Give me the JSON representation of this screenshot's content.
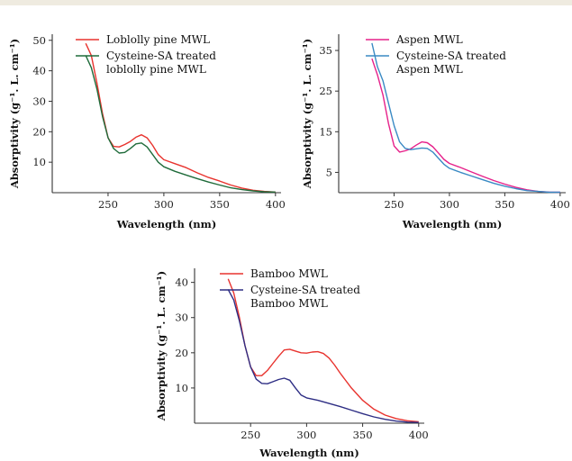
{
  "chart_data": [
    {
      "type": "line",
      "xlabel": "Wavelength (nm)",
      "ylabel": "Absorptivity (g⁻¹. L. cm⁻¹)",
      "xlim": [
        200,
        405
      ],
      "ylim": [
        0,
        52
      ],
      "xticks": [
        250,
        300,
        350,
        400
      ],
      "yticks": [
        10,
        20,
        30,
        40,
        50
      ],
      "legend": "top-right",
      "series": [
        {
          "name": "Loblolly pine MWL",
          "color": "#e8332e",
          "x": [
            230,
            235,
            240,
            245,
            250,
            255,
            260,
            265,
            270,
            275,
            280,
            285,
            290,
            295,
            300,
            310,
            320,
            330,
            340,
            350,
            360,
            370,
            380,
            390,
            400
          ],
          "y": [
            49,
            45,
            36,
            26,
            18,
            15.2,
            15,
            15.8,
            16.8,
            18.2,
            19,
            18,
            15.5,
            12.5,
            10.8,
            9.5,
            8.2,
            6.5,
            5,
            3.8,
            2.5,
            1.5,
            0.8,
            0.4,
            0.2
          ]
        },
        {
          "name": "Cysteine-SA treated",
          "name2": "loblolly pine MWL",
          "color": "#1f6b3a",
          "x": [
            230,
            235,
            240,
            245,
            250,
            255,
            260,
            265,
            270,
            275,
            280,
            285,
            290,
            295,
            300,
            310,
            320,
            330,
            340,
            350,
            360,
            370,
            380,
            390,
            400
          ],
          "y": [
            45,
            41,
            34,
            25,
            18,
            14.5,
            13,
            13.2,
            14.5,
            16,
            16.3,
            15,
            12.5,
            10,
            8.5,
            7,
            5.8,
            4.6,
            3.5,
            2.5,
            1.6,
            1,
            0.6,
            0.3,
            0.2
          ]
        }
      ]
    },
    {
      "type": "line",
      "xlabel": "Wavelength (nm)",
      "ylabel": "Absorptivity (g⁻¹. L. cm⁻¹)",
      "xlim": [
        200,
        405
      ],
      "ylim": [
        0,
        39
      ],
      "xticks": [
        250,
        300,
        350,
        400
      ],
      "yticks": [
        5,
        15,
        25,
        35
      ],
      "legend": "top-right",
      "series": [
        {
          "name": "Aspen MWL",
          "color": "#e6218a",
          "x": [
            230,
            235,
            240,
            245,
            250,
            255,
            260,
            265,
            270,
            275,
            280,
            285,
            290,
            295,
            300,
            310,
            320,
            330,
            340,
            350,
            360,
            370,
            380,
            390,
            400
          ],
          "y": [
            33,
            29,
            24,
            17,
            11.5,
            10,
            10.3,
            10.8,
            11.7,
            12.5,
            12.3,
            11.3,
            9.8,
            8.2,
            7.2,
            6.2,
            5.1,
            4,
            3,
            2.1,
            1.3,
            0.7,
            0.3,
            0.15,
            0.1
          ]
        },
        {
          "name": "Cysteine-SA treated",
          "name2": "Aspen MWL",
          "color": "#3a8ac4",
          "x": [
            230,
            235,
            240,
            245,
            250,
            255,
            260,
            265,
            270,
            275,
            280,
            285,
            290,
            295,
            300,
            310,
            320,
            330,
            340,
            350,
            360,
            370,
            380,
            390,
            400
          ],
          "y": [
            36.8,
            31,
            27.5,
            22,
            16.5,
            12.5,
            10.9,
            10.6,
            10.8,
            11,
            10.9,
            10,
            8.5,
            7,
            6,
            5,
            4.1,
            3.2,
            2.3,
            1.6,
            1,
            0.5,
            0.3,
            0.1,
            0.1
          ]
        }
      ]
    },
    {
      "type": "line",
      "xlabel": "Wavelength (nm)",
      "ylabel": "Absorptivity (g⁻¹. L. cm⁻¹)",
      "xlim": [
        200,
        405
      ],
      "ylim": [
        0,
        44
      ],
      "xticks": [
        250,
        300,
        350,
        400
      ],
      "yticks": [
        10,
        20,
        30,
        40
      ],
      "legend": "top-right",
      "series": [
        {
          "name": "Bamboo MWL",
          "color": "#e8332e",
          "x": [
            230,
            235,
            240,
            245,
            250,
            255,
            260,
            265,
            270,
            275,
            280,
            285,
            290,
            295,
            300,
            305,
            310,
            315,
            320,
            325,
            330,
            340,
            350,
            360,
            370,
            380,
            390,
            400
          ],
          "y": [
            41,
            37,
            30,
            22,
            16,
            13.5,
            13.5,
            15,
            17,
            19,
            20.8,
            21,
            20.5,
            20,
            19.9,
            20.2,
            20.3,
            19.8,
            18.5,
            16.5,
            14.2,
            10,
            6.5,
            4,
            2.3,
            1.3,
            0.7,
            0.4
          ]
        },
        {
          "name": "Cysteine-SA treated",
          "name2": "Bamboo MWL",
          "color": "#2e2e84",
          "x": [
            230,
            235,
            240,
            245,
            250,
            255,
            260,
            265,
            270,
            275,
            280,
            285,
            290,
            295,
            300,
            310,
            320,
            330,
            340,
            350,
            360,
            370,
            380,
            390,
            400
          ],
          "y": [
            38,
            35,
            29,
            22,
            16,
            12.5,
            11.3,
            11.2,
            11.8,
            12.4,
            12.8,
            12.2,
            10,
            8,
            7.2,
            6.5,
            5.6,
            4.7,
            3.7,
            2.7,
            1.8,
            1.1,
            0.6,
            0.3,
            0.2
          ]
        }
      ]
    }
  ]
}
